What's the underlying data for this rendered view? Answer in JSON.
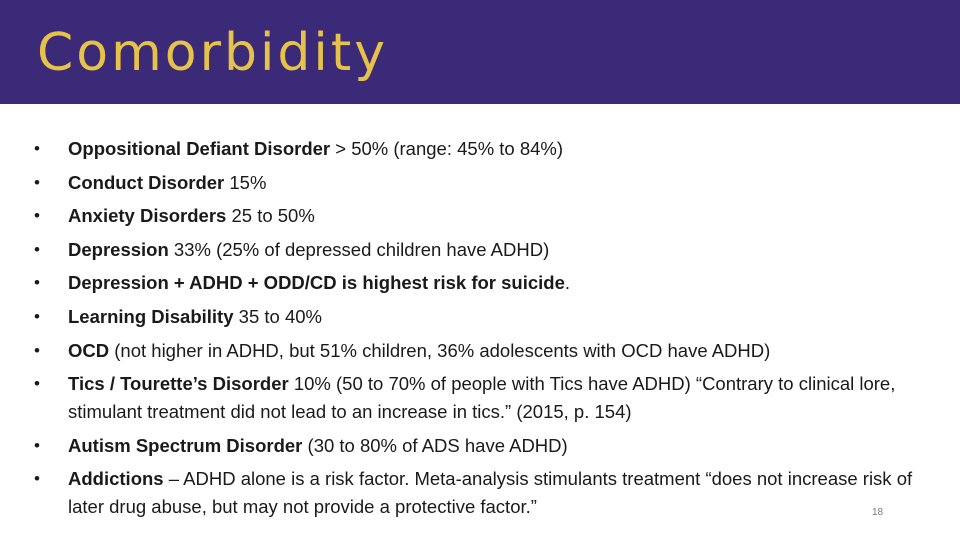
{
  "slide": {
    "title": "Comorbidity",
    "page_number": "18",
    "colors": {
      "title_bar": "#3a2a78",
      "title_text": "#e6c24a",
      "body_text": "#1a1a1a"
    }
  },
  "bullets": [
    {
      "bold": "Oppositional Defiant Disorder",
      "text": "  > 50% (range: 45% to 84%)"
    },
    {
      "bold": "Conduct Disorder",
      "text": " 15%"
    },
    {
      "bold": "Anxiety Disorders",
      "text": " 25 to 50%"
    },
    {
      "bold": "Depression",
      "text": " 33% (25% of depressed children have ADHD)"
    },
    {
      "bold": "Depression + ADHD + ODD/CD is highest risk for suicide",
      "text": "."
    },
    {
      "bold": "Learning Disability",
      "text": " 35 to 40%"
    },
    {
      "bold": "OCD",
      "text": " (not higher in ADHD, but 51% children, 36% adolescents with OCD have ADHD)"
    },
    {
      "bold": "Tics / Tourette’s Disorder",
      "text": " 10% (50 to 70% of people with Tics have ADHD) “Contrary to clinical lore, stimulant treatment did not lead to an increase in tics.” (2015, p. 154)"
    },
    {
      "bold": "Autism Spectrum Disorder",
      "text": " (30 to 80% of ADS have ADHD)"
    },
    {
      "bold": "Addictions",
      "text": " – ADHD alone is a risk factor. Meta-analysis stimulants treatment “does not increase risk of later drug abuse, but may not provide a protective factor.”"
    }
  ],
  "bullet_glyph": "•"
}
